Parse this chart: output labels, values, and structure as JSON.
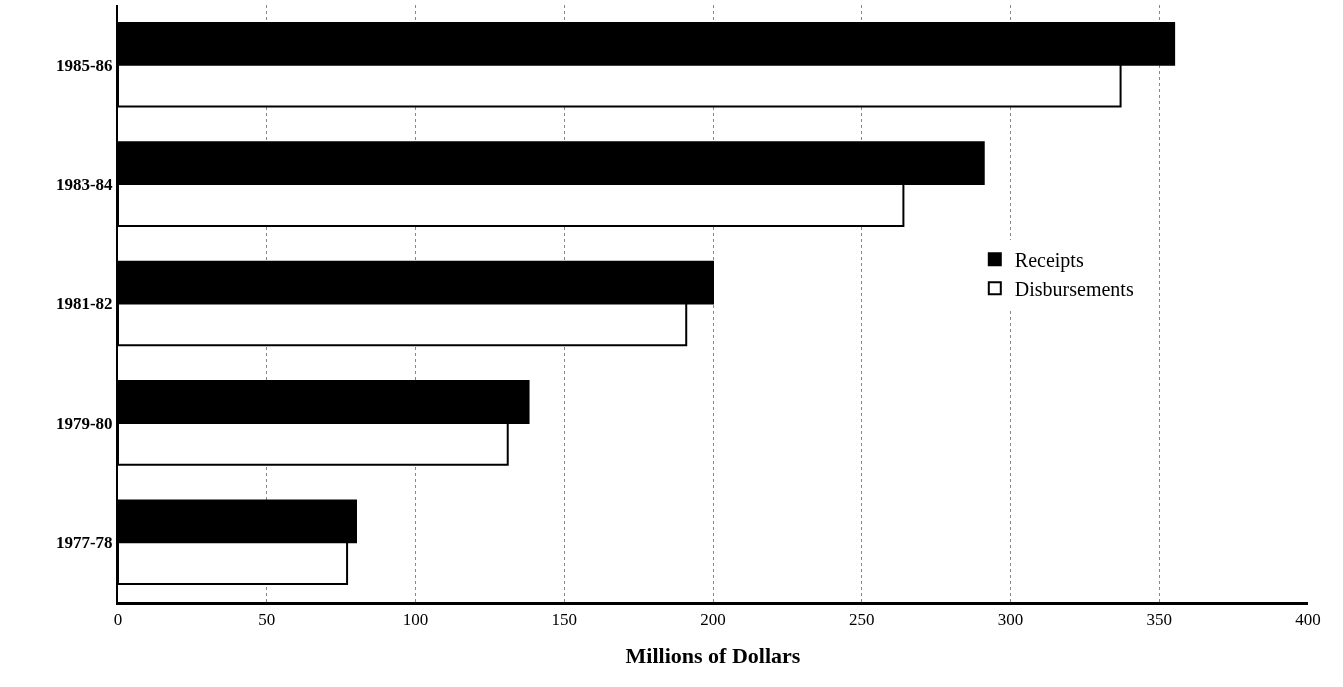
{
  "chart_data": {
    "type": "bar",
    "orientation": "horizontal",
    "xlabel": "Millions of Dollars",
    "categories": [
      "1985-86",
      "1983-84",
      "1981-82",
      "1979-80",
      "1977-78"
    ],
    "series": [
      {
        "name": "Receipts",
        "color": "#000000",
        "values": [
          355,
          291,
          200,
          138,
          80
        ]
      },
      {
        "name": "Disbursements",
        "color": "#ffffff",
        "values": [
          337,
          264,
          191,
          131,
          77
        ]
      }
    ],
    "xlim": [
      0,
      400
    ],
    "xticks": [
      0,
      50,
      100,
      150,
      200,
      250,
      300,
      350,
      400
    ],
    "grid": "x",
    "legend": "right"
  }
}
